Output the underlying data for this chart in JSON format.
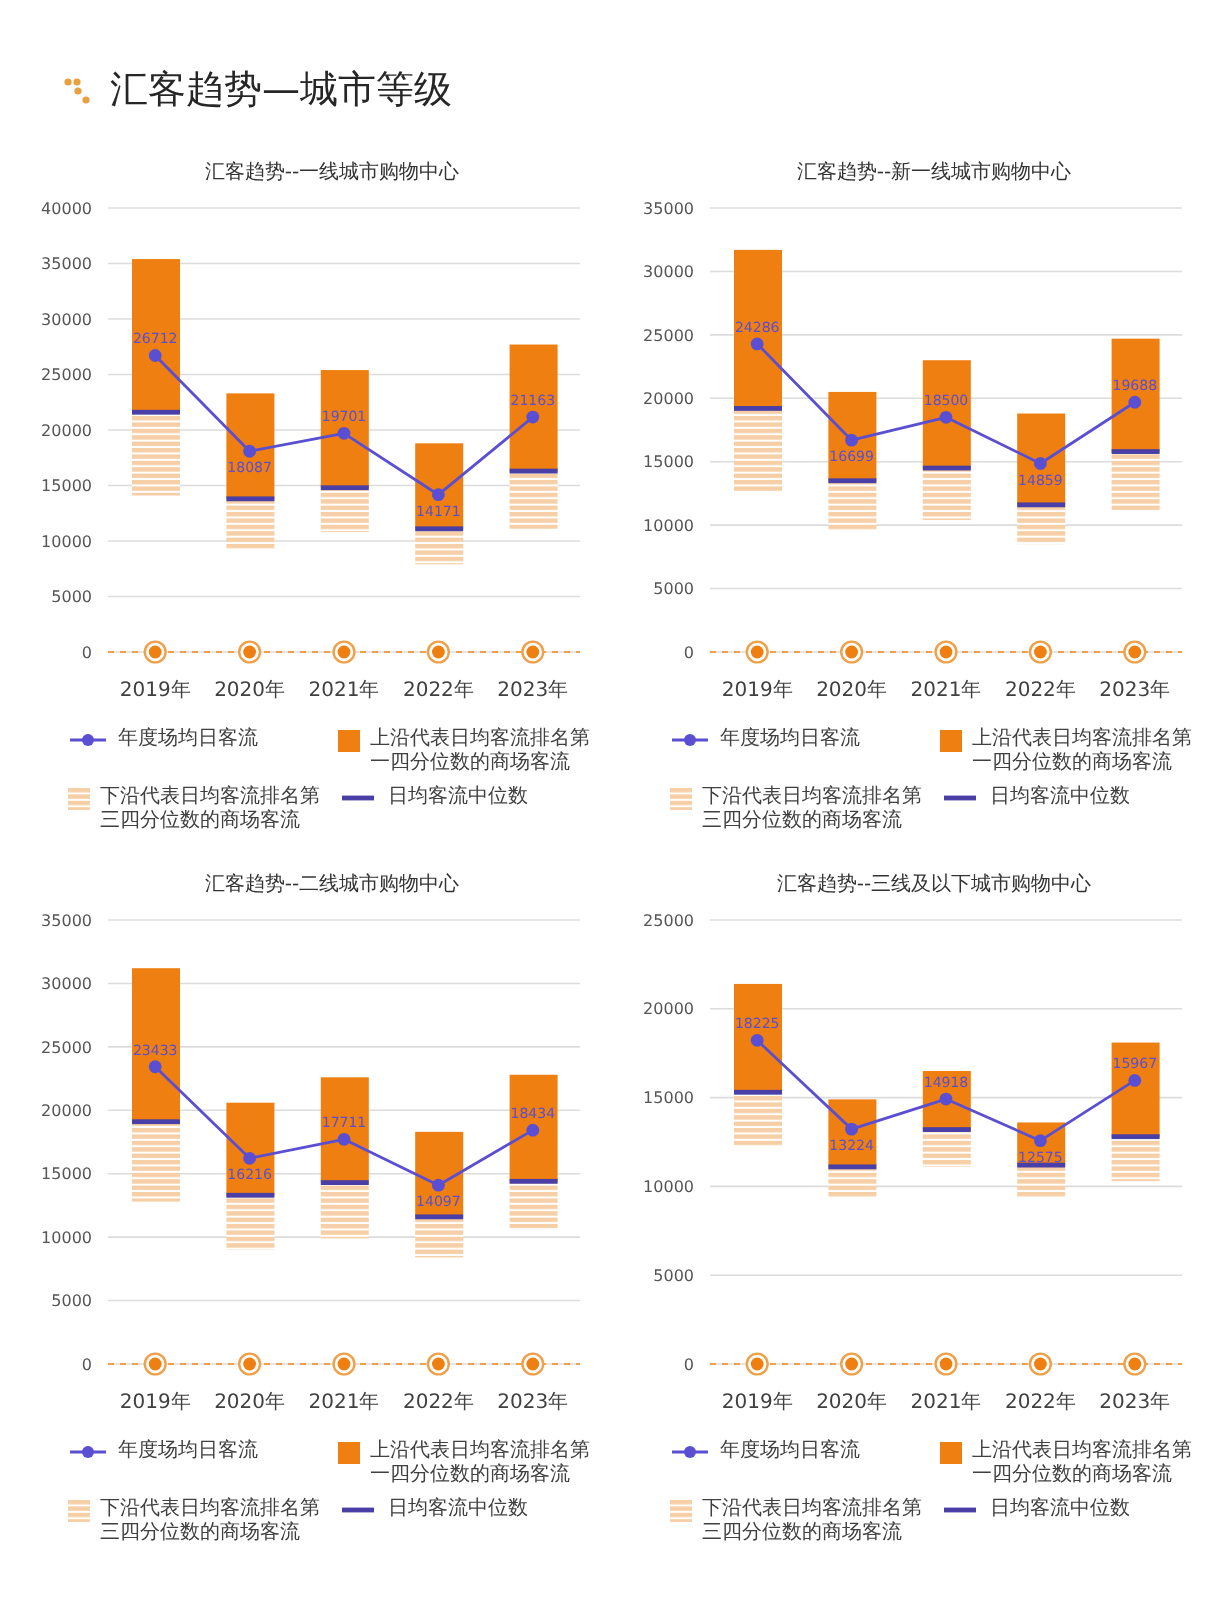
{
  "chart_data": [
    {
      "type": "other",
      "title": "汇客趋势—城市等级"
    },
    {
      "type": "bar",
      "title": "汇客趋势--一线城市购物中心",
      "categories": [
        "2019年",
        "2020年",
        "2021年",
        "2022年",
        "2023年"
      ],
      "series": [
        {
          "name": "年度场均日客流",
          "type": "line",
          "color": "#5a4fd2",
          "marker": "circle",
          "values": [
            26712,
            18087,
            19701,
            14171,
            21163
          ],
          "value_labels": [
            "26712",
            "18087",
            "19701",
            "14171",
            "21163"
          ]
        },
        {
          "name": "上沿代表日均客流排名第一四分位数的商场客流",
          "color": "#ee7f10",
          "base": [
            21600,
            13800,
            14800,
            11100,
            16300
          ],
          "values": [
            13800,
            9500,
            10600,
            7700,
            11400
          ]
        },
        {
          "name": "下沿代表日均客流排名第三四分位数的商场客流",
          "color": "#f7cfa6",
          "base": [
            14100,
            9300,
            10800,
            7900,
            11100
          ],
          "values": [
            7500,
            4500,
            4000,
            3200,
            5200
          ]
        },
        {
          "name": "日均客流中位数",
          "color": "#4a3fa6",
          "base": [
            21600,
            13800,
            14800,
            11100,
            16300
          ],
          "values": [
            0,
            0,
            0,
            0,
            0
          ]
        }
      ],
      "ylim": [
        0,
        40000
      ],
      "yticks": [
        0,
        5000,
        10000,
        15000,
        20000,
        25000,
        30000,
        35000,
        40000
      ],
      "grid": "y",
      "legend": "bottom"
    },
    {
      "type": "bar",
      "title": "汇客趋势--新一线城市购物中心",
      "categories": [
        "2019年",
        "2020年",
        "2021年",
        "2022年",
        "2023年"
      ],
      "series": [
        {
          "name": "年度场均日客流",
          "type": "line",
          "color": "#5a4fd2",
          "marker": "circle",
          "values": [
            24286,
            16699,
            18500,
            14859,
            19688
          ],
          "value_labels": [
            "24286",
            "16699",
            "18500",
            "14859",
            "19688"
          ]
        },
        {
          "name": "上沿代表日均客流排名第一四分位数的商场客流",
          "color": "#ee7f10",
          "base": [
            19200,
            13500,
            14500,
            11600,
            15800
          ],
          "values": [
            12500,
            7000,
            8500,
            7200,
            8900
          ]
        },
        {
          "name": "下沿代表日均客流排名第三四分位数的商场客流",
          "color": "#f7cfa6",
          "base": [
            12600,
            9600,
            10400,
            8500,
            11100
          ],
          "values": [
            6600,
            3900,
            4100,
            3100,
            4700
          ]
        },
        {
          "name": "日均客流中位数",
          "color": "#4a3fa6",
          "base": [
            19200,
            13500,
            14500,
            11600,
            15800
          ],
          "values": [
            0,
            0,
            0,
            0,
            0
          ]
        }
      ],
      "ylim": [
        0,
        35000
      ],
      "yticks": [
        0,
        5000,
        10000,
        15000,
        20000,
        25000,
        30000,
        35000
      ],
      "grid": "y",
      "legend": "bottom"
    },
    {
      "type": "bar",
      "title": "汇客趋势--二线城市购物中心",
      "categories": [
        "2019年",
        "2020年",
        "2021年",
        "2022年",
        "2023年"
      ],
      "series": [
        {
          "name": "年度场均日客流",
          "type": "line",
          "color": "#5a4fd2",
          "marker": "circle",
          "values": [
            23433,
            16216,
            17711,
            14097,
            18434
          ],
          "value_labels": [
            "23433",
            "16216",
            "17711",
            "14097",
            "18434"
          ]
        },
        {
          "name": "上沿代表日均客流排名第一四分位数的商场客流",
          "color": "#ee7f10",
          "base": [
            19100,
            13300,
            14300,
            11600,
            14400
          ],
          "values": [
            12100,
            7300,
            8300,
            6700,
            8400
          ]
        },
        {
          "name": "下沿代表日均客流排名第三四分位数的商场客流",
          "color": "#f7cfa6",
          "base": [
            12800,
            9000,
            9900,
            8400,
            10700
          ],
          "values": [
            6300,
            4300,
            4400,
            3200,
            3700
          ]
        },
        {
          "name": "日均客流中位数",
          "color": "#4a3fa6",
          "base": [
            19100,
            13300,
            14300,
            11600,
            14400
          ],
          "values": [
            0,
            0,
            0,
            0,
            0
          ]
        }
      ],
      "ylim": [
        0,
        35000
      ],
      "yticks": [
        0,
        5000,
        10000,
        15000,
        20000,
        25000,
        30000,
        35000
      ],
      "grid": "y",
      "legend": "bottom"
    },
    {
      "type": "bar",
      "title": "汇客趋势--三线及以下城市购物中心",
      "categories": [
        "2019年",
        "2020年",
        "2021年",
        "2022年",
        "2023年"
      ],
      "series": [
        {
          "name": "年度场均日客流",
          "type": "line",
          "color": "#5a4fd2",
          "marker": "circle",
          "values": [
            18225,
            13224,
            14918,
            12575,
            15967
          ],
          "value_labels": [
            "18225",
            "13224",
            "14918",
            "12575",
            "15967"
          ]
        },
        {
          "name": "上沿代表日均客流排名第一四分位数的商场客流",
          "color": "#ee7f10",
          "base": [
            15300,
            11100,
            13200,
            11200,
            12800
          ],
          "values": [
            6100,
            3800,
            3300,
            2400,
            5300
          ]
        },
        {
          "name": "下沿代表日均客流排名第三四分位数的商场客流",
          "color": "#f7cfa6",
          "base": [
            12300,
            9400,
            11100,
            9400,
            10300
          ],
          "values": [
            3000,
            1700,
            2100,
            1800,
            2500
          ]
        },
        {
          "name": "日均客流中位数",
          "color": "#4a3fa6",
          "base": [
            15300,
            11100,
            13200,
            11200,
            12800
          ],
          "values": [
            0,
            0,
            0,
            0,
            0
          ]
        }
      ],
      "ylim": [
        0,
        25000
      ],
      "yticks": [
        0,
        5000,
        10000,
        15000,
        20000,
        25000
      ],
      "grid": "y",
      "legend": "bottom"
    }
  ]
}
